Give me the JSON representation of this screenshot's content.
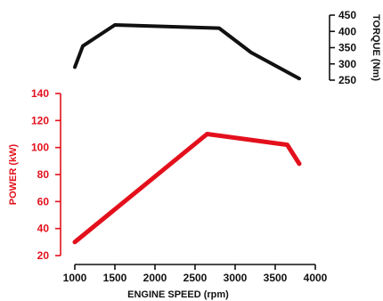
{
  "chart_data": {
    "type": "line",
    "xlabel": "ENGINE SPEED (rpm)",
    "x_ticks": [
      1000,
      1500,
      2000,
      2500,
      3000,
      3500,
      4000
    ],
    "xlim": [
      1000,
      4000
    ],
    "grid": false,
    "legend": "none",
    "panels": [
      {
        "ylabel": "TORQUE (Nm)",
        "y_axis_side": "right",
        "ylim": [
          250,
          450
        ],
        "y_ticks": [
          250,
          300,
          350,
          400,
          450
        ],
        "color": "#111111",
        "series": [
          {
            "x": [
              1000,
              1100,
              1500,
              2800,
              3200,
              3800
            ],
            "y": [
              290,
              355,
              420,
              410,
              335,
              255
            ]
          }
        ]
      },
      {
        "ylabel": "POWER (kW)",
        "y_axis_side": "left",
        "ylim": [
          20,
          140
        ],
        "y_ticks": [
          20,
          40,
          60,
          80,
          100,
          120,
          140
        ],
        "color": "#e3101c",
        "series": [
          {
            "x": [
              1000,
              2650,
              3650,
              3800
            ],
            "y": [
              30,
              110,
              102,
              88
            ]
          }
        ]
      }
    ]
  }
}
